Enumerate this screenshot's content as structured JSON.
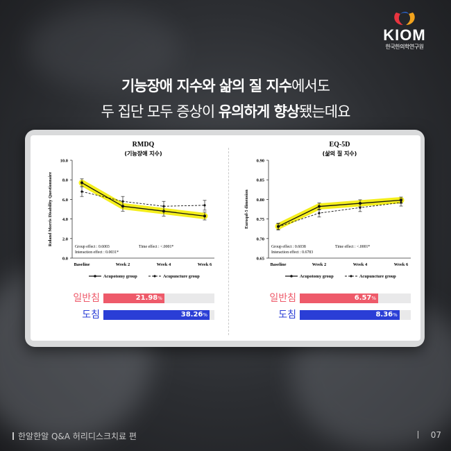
{
  "logo": {
    "brand": "KIOM",
    "sub": "한국한의학연구원"
  },
  "headline": {
    "line1_bold": "기능장애 지수와 삶의 질 지수",
    "line1_rest": "에서도",
    "line2_pre": "두 집단 모두 증상이 ",
    "line2_bold1": "유의하게 향상",
    "line2_mid": "됐는데요"
  },
  "footer": {
    "left": "한알한알 Q&A 허리디스크치료 편",
    "page": "07"
  },
  "colors": {
    "acupotomy": "#111111",
    "highlight": "#f4ee1c",
    "general_bar": "#ee5a6a",
    "dochim_bar": "#2a3ed6"
  },
  "chart_data": [
    {
      "type": "line",
      "title": "RMDQ",
      "subtitle": "(기능장애 지수)",
      "ylabel": "Roland Morris Disability Questionnaire",
      "categories": [
        "Baseline",
        "Week 2",
        "Week 4",
        "Week 6"
      ],
      "ylim": [
        0,
        10
      ],
      "yticks": [
        "0.0",
        "2.0",
        "4.0",
        "6.0",
        "8.0",
        "10.0"
      ],
      "ytick_values": [
        0,
        2,
        4,
        6,
        8,
        10
      ],
      "series": [
        {
          "name": "Acupotomy group",
          "values": [
            7.7,
            5.3,
            4.8,
            4.3
          ],
          "errors": [
            0.4,
            0.5,
            0.5,
            0.4
          ]
        },
        {
          "name": "Acupuncture group",
          "values": [
            6.8,
            5.8,
            5.3,
            5.4
          ],
          "errors": [
            0.5,
            0.5,
            0.5,
            0.5
          ]
        }
      ],
      "stats": {
        "group": "Group effect : 0.6003",
        "time": "Time effect : <.0001*",
        "interaction": "Interaction effect : 0.0031*"
      },
      "comparison": [
        {
          "label": "일반침",
          "value": 21.98,
          "text": "21.98",
          "unit": "%"
        },
        {
          "label": "도침",
          "value": 38.26,
          "text": "38.26",
          "unit": "%"
        }
      ],
      "comparison_max": 40
    },
    {
      "type": "line",
      "title": "EQ-5D",
      "subtitle": "(삶의 질 지수)",
      "ylabel": "Euroqol-5 dimension",
      "categories": [
        "Baseline",
        "Week 2",
        "Week 4",
        "Week 6"
      ],
      "ylim": [
        0.65,
        0.9
      ],
      "yticks": [
        "0.65",
        "0.70",
        "0.75",
        "0.80",
        "0.85",
        "0.90"
      ],
      "ytick_values": [
        0.65,
        0.7,
        0.75,
        0.8,
        0.85,
        0.9
      ],
      "series": [
        {
          "name": "Acupotomy group",
          "values": [
            0.731,
            0.782,
            0.79,
            0.798
          ],
          "errors": [
            0.008,
            0.009,
            0.009,
            0.008
          ]
        },
        {
          "name": "Acupuncture group",
          "values": [
            0.73,
            0.765,
            0.779,
            0.792
          ],
          "errors": [
            0.008,
            0.01,
            0.01,
            0.009
          ]
        }
      ],
      "stats": {
        "group": "Group effect : 0.6038",
        "time": "Time effect : <.0001*",
        "interaction": "Interaction effect : 0.6783"
      },
      "comparison": [
        {
          "label": "일반침",
          "value": 6.57,
          "text": "6.57",
          "unit": "%"
        },
        {
          "label": "도침",
          "value": 8.36,
          "text": "8.36",
          "unit": "%"
        }
      ],
      "comparison_max": 9.3
    }
  ]
}
